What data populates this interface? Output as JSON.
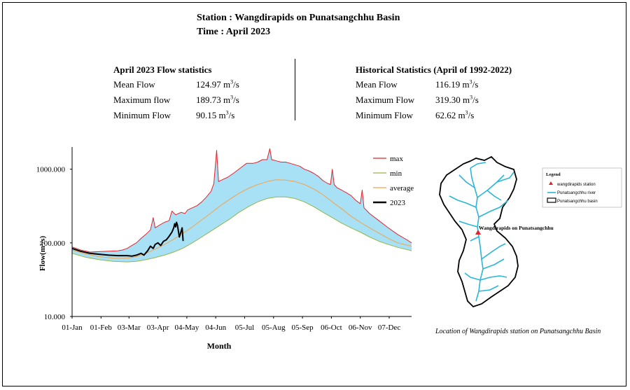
{
  "header": {
    "station_line": "Station : Wangdirapids on Punatsangchhu Basin",
    "time_line": "Time : April 2023"
  },
  "current_stats": {
    "title": "April 2023 Flow statistics",
    "rows": [
      {
        "label": "Mean Flow",
        "value": "124.97",
        "unit": "m",
        "unit_sup": "3",
        "unit_tail": "/s"
      },
      {
        "label": "Maximum flow",
        "value": "189.73",
        "unit": "m",
        "unit_sup": "3",
        "unit_tail": "/s"
      },
      {
        "label": "Minimum Flow",
        "value": "90.15",
        "unit": "m",
        "unit_sup": "3",
        "unit_tail": "/s"
      }
    ]
  },
  "historical_stats": {
    "title": "Historical Statistics (April of 1992-2022)",
    "rows": [
      {
        "label": "Mean Flow",
        "value": "116.19",
        "unit": "m",
        "unit_sup": "3",
        "unit_tail": "/s"
      },
      {
        "label": "Maximum Flow",
        "value": "319.30",
        "unit": "m",
        "unit_sup": "3",
        "unit_tail": "/s"
      },
      {
        "label": "Minimum Flow",
        "value": "62.62",
        "unit": "m",
        "unit_sup": "3",
        "unit_tail": "/s"
      }
    ]
  },
  "chart_data": {
    "type": "line",
    "xlabel": "Month",
    "ylabel": "Flow(m³/s)",
    "yscale": "log",
    "ylim": [
      10,
      2000
    ],
    "y_ticks": [
      {
        "value": 10,
        "label": "10.000"
      },
      {
        "value": 100,
        "label": "100.000"
      },
      {
        "value": 1000,
        "label": "1000.000"
      }
    ],
    "xlim": [
      1,
      365
    ],
    "x_ticks": [
      {
        "day": 1,
        "label": "01-Jan"
      },
      {
        "day": 32,
        "label": "01-Feb"
      },
      {
        "day": 62,
        "label": "03-Mar"
      },
      {
        "day": 93,
        "label": "03-Apr"
      },
      {
        "day": 124,
        "label": "04-May"
      },
      {
        "day": 155,
        "label": "04-Jun"
      },
      {
        "day": 186,
        "label": "05-Jul"
      },
      {
        "day": 217,
        "label": "05-Aug"
      },
      {
        "day": 248,
        "label": "05-Sep"
      },
      {
        "day": 279,
        "label": "06-Oct"
      },
      {
        "day": 310,
        "label": "06-Nov"
      },
      {
        "day": 341,
        "label": "07-Dec"
      }
    ],
    "fill_between": {
      "upper": "max",
      "lower": "min",
      "color": "#a8e0f5"
    },
    "legend_position": "top-right",
    "series": [
      {
        "name": "max",
        "color": "#e0242b",
        "width": 1,
        "points": [
          [
            1,
            88
          ],
          [
            10,
            80
          ],
          [
            20,
            75
          ],
          [
            30,
            76
          ],
          [
            40,
            77
          ],
          [
            50,
            78
          ],
          [
            55,
            80
          ],
          [
            60,
            84
          ],
          [
            65,
            92
          ],
          [
            70,
            100
          ],
          [
            75,
            115
          ],
          [
            80,
            130
          ],
          [
            85,
            150
          ],
          [
            88,
            220
          ],
          [
            90,
            160
          ],
          [
            95,
            175
          ],
          [
            100,
            190
          ],
          [
            105,
            200
          ],
          [
            108,
            270
          ],
          [
            112,
            240
          ],
          [
            118,
            260
          ],
          [
            122,
            250
          ],
          [
            125,
            280
          ],
          [
            130,
            300
          ],
          [
            135,
            320
          ],
          [
            140,
            360
          ],
          [
            145,
            420
          ],
          [
            150,
            500
          ],
          [
            153,
            640
          ],
          [
            156,
            1800
          ],
          [
            158,
            680
          ],
          [
            162,
            720
          ],
          [
            168,
            780
          ],
          [
            175,
            900
          ],
          [
            182,
            1050
          ],
          [
            188,
            1200
          ],
          [
            195,
            1200
          ],
          [
            200,
            1250
          ],
          [
            205,
            1350
          ],
          [
            210,
            1350
          ],
          [
            213,
            1900
          ],
          [
            215,
            1350
          ],
          [
            220,
            1300
          ],
          [
            225,
            1250
          ],
          [
            230,
            1250
          ],
          [
            235,
            1200
          ],
          [
            240,
            1150
          ],
          [
            245,
            1100
          ],
          [
            250,
            1000
          ],
          [
            255,
            950
          ],
          [
            260,
            880
          ],
          [
            265,
            800
          ],
          [
            270,
            700
          ],
          [
            275,
            640
          ],
          [
            278,
            620
          ],
          [
            280,
            1000
          ],
          [
            282,
            620
          ],
          [
            285,
            560
          ],
          [
            290,
            520
          ],
          [
            295,
            480
          ],
          [
            300,
            440
          ],
          [
            305,
            380
          ],
          [
            310,
            340
          ],
          [
            312,
            520
          ],
          [
            314,
            300
          ],
          [
            320,
            250
          ],
          [
            330,
            200
          ],
          [
            340,
            160
          ],
          [
            350,
            130
          ],
          [
            360,
            110
          ],
          [
            365,
            100
          ]
        ]
      },
      {
        "name": "min",
        "color": "#8fb848",
        "width": 1,
        "points": [
          [
            1,
            72
          ],
          [
            15,
            64
          ],
          [
            30,
            59
          ],
          [
            45,
            56
          ],
          [
            60,
            55
          ],
          [
            70,
            56
          ],
          [
            80,
            59
          ],
          [
            90,
            63
          ],
          [
            100,
            68
          ],
          [
            110,
            75
          ],
          [
            120,
            85
          ],
          [
            130,
            100
          ],
          [
            140,
            120
          ],
          [
            150,
            145
          ],
          [
            160,
            175
          ],
          [
            170,
            210
          ],
          [
            180,
            260
          ],
          [
            190,
            310
          ],
          [
            200,
            360
          ],
          [
            210,
            400
          ],
          [
            220,
            420
          ],
          [
            230,
            420
          ],
          [
            240,
            400
          ],
          [
            250,
            360
          ],
          [
            260,
            310
          ],
          [
            270,
            260
          ],
          [
            280,
            220
          ],
          [
            290,
            185
          ],
          [
            300,
            160
          ],
          [
            310,
            140
          ],
          [
            320,
            120
          ],
          [
            330,
            105
          ],
          [
            340,
            95
          ],
          [
            350,
            87
          ],
          [
            365,
            78
          ]
        ]
      },
      {
        "name": "average",
        "color": "#f4a24c",
        "width": 1,
        "points": [
          [
            1,
            80
          ],
          [
            15,
            71
          ],
          [
            30,
            65
          ],
          [
            45,
            62
          ],
          [
            60,
            62
          ],
          [
            70,
            65
          ],
          [
            80,
            72
          ],
          [
            90,
            82
          ],
          [
            100,
            95
          ],
          [
            110,
            112
          ],
          [
            120,
            135
          ],
          [
            130,
            165
          ],
          [
            140,
            205
          ],
          [
            150,
            255
          ],
          [
            160,
            320
          ],
          [
            170,
            390
          ],
          [
            180,
            470
          ],
          [
            190,
            550
          ],
          [
            200,
            620
          ],
          [
            210,
            680
          ],
          [
            220,
            720
          ],
          [
            230,
            710
          ],
          [
            240,
            680
          ],
          [
            250,
            620
          ],
          [
            260,
            540
          ],
          [
            270,
            450
          ],
          [
            280,
            360
          ],
          [
            290,
            290
          ],
          [
            300,
            230
          ],
          [
            310,
            190
          ],
          [
            320,
            160
          ],
          [
            330,
            135
          ],
          [
            340,
            115
          ],
          [
            350,
            100
          ],
          [
            365,
            90
          ]
        ]
      },
      {
        "name": "2023",
        "color": "#000000",
        "width": 2,
        "points": [
          [
            1,
            84
          ],
          [
            10,
            77
          ],
          [
            20,
            72
          ],
          [
            30,
            70
          ],
          [
            40,
            68
          ],
          [
            50,
            67
          ],
          [
            60,
            67
          ],
          [
            65,
            66
          ],
          [
            70,
            68
          ],
          [
            75,
            72
          ],
          [
            78,
            68
          ],
          [
            82,
            78
          ],
          [
            85,
            90
          ],
          [
            88,
            84
          ],
          [
            90,
            95
          ],
          [
            93,
            100
          ],
          [
            96,
            92
          ],
          [
            99,
            105
          ],
          [
            102,
            110
          ],
          [
            104,
            118
          ],
          [
            106,
            128
          ],
          [
            108,
            140
          ],
          [
            110,
            160
          ],
          [
            111,
            182
          ],
          [
            112,
            165
          ],
          [
            113,
            190
          ],
          [
            114,
            172
          ],
          [
            116,
            120
          ],
          [
            118,
            145
          ],
          [
            119,
            160
          ],
          [
            120,
            106
          ]
        ]
      }
    ]
  },
  "map": {
    "legend_title": "Legend",
    "legend_items": [
      {
        "symbol": "triangle",
        "label": "wangdirapids station",
        "color": "#e0242b"
      },
      {
        "symbol": "line",
        "label": "Punatsangchhu river",
        "color": "#29b6d8"
      },
      {
        "symbol": "box",
        "label": "Punatsangchhu basin",
        "color": "#000000"
      }
    ],
    "station_label": "Wangdirapids on Punatsangchhu",
    "caption": "Location of Wangdirapids station on Punatsangchhu Basin"
  }
}
